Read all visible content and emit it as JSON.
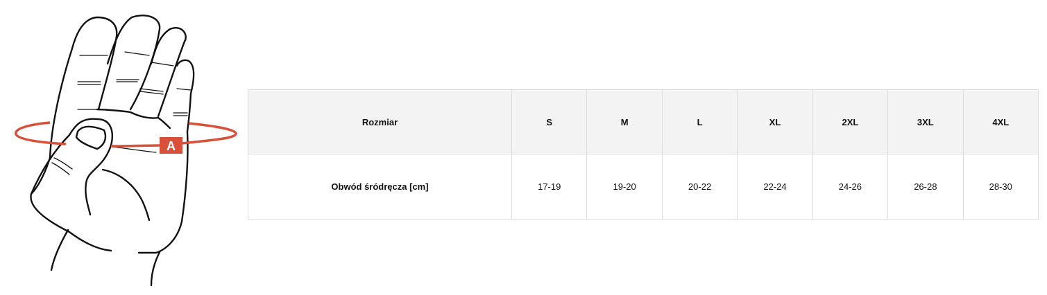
{
  "illustration": {
    "marker_label": "A",
    "accent_color": "#d9503a"
  },
  "size_table": {
    "header_label": "Rozmiar",
    "sizes": [
      "S",
      "M",
      "L",
      "XL",
      "2XL",
      "3XL",
      "4XL"
    ],
    "row_label": "Obwód śródręcza [cm]",
    "values": [
      "17-19",
      "19-20",
      "20-22",
      "22-24",
      "24-26",
      "26-28",
      "28-30"
    ]
  }
}
